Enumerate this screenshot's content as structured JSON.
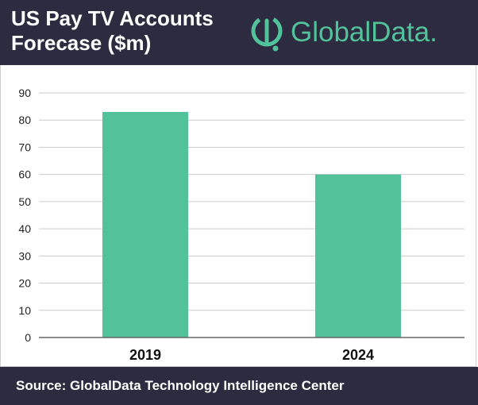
{
  "header": {
    "title_line1": "US Pay TV Accounts",
    "title_line2": "Forecase ($m)",
    "brand": "GlobalData."
  },
  "footer": {
    "source": "Source: GlobalData Technology Intelligence Center"
  },
  "colors": {
    "header_bg": "#2d2b3f",
    "bar": "#52c29a",
    "brand": "#52c29a",
    "grid": "#cccccc"
  },
  "chart_data": {
    "type": "bar",
    "categories": [
      "2019",
      "2024"
    ],
    "values": [
      83,
      60
    ],
    "ylim": [
      0,
      90
    ],
    "yticks": [
      0,
      10,
      20,
      30,
      40,
      50,
      60,
      70,
      80,
      90
    ],
    "grid": true,
    "title": "",
    "xlabel": "",
    "ylabel": ""
  }
}
